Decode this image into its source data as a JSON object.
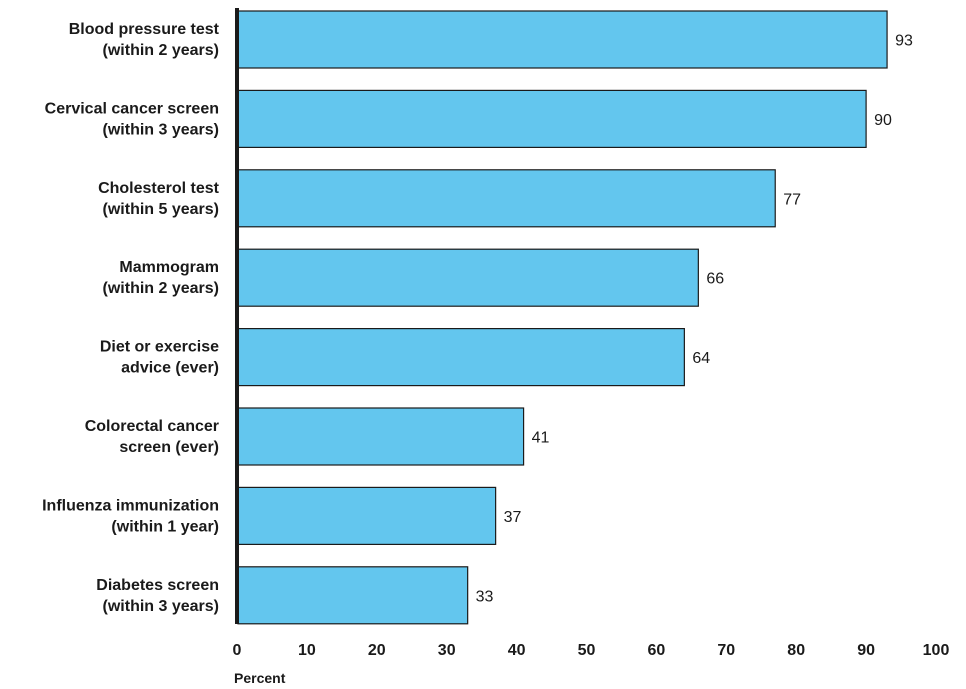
{
  "chart_data": {
    "type": "bar",
    "orientation": "horizontal",
    "categories": [
      [
        "Blood pressure test",
        "(within 2 years)"
      ],
      [
        "Cervical cancer screen",
        "(within 3 years)"
      ],
      [
        "Cholesterol test",
        "(within 5 years)"
      ],
      [
        "Mammogram",
        "(within 2 years)"
      ],
      [
        "Diet or exercise",
        "advice (ever)"
      ],
      [
        "Colorectal cancer",
        "screen (ever)"
      ],
      [
        "Influenza immunization",
        "(within 1 year)"
      ],
      [
        "Diabetes screen",
        "(within 3 years)"
      ]
    ],
    "values": [
      93,
      90,
      77,
      66,
      64,
      41,
      37,
      33
    ],
    "title": "",
    "xlabel": "Percent",
    "ylabel": "",
    "xlim": [
      0,
      100
    ],
    "xticks": [
      0,
      10,
      20,
      30,
      40,
      50,
      60,
      70,
      80,
      90,
      100
    ],
    "grid": false,
    "data_labels": true,
    "colors": {
      "bar_fill": "#63c6ee",
      "bar_stroke": "#1a1a1a",
      "axis": "#1a1a1a",
      "text": "#1a1a1a"
    }
  }
}
